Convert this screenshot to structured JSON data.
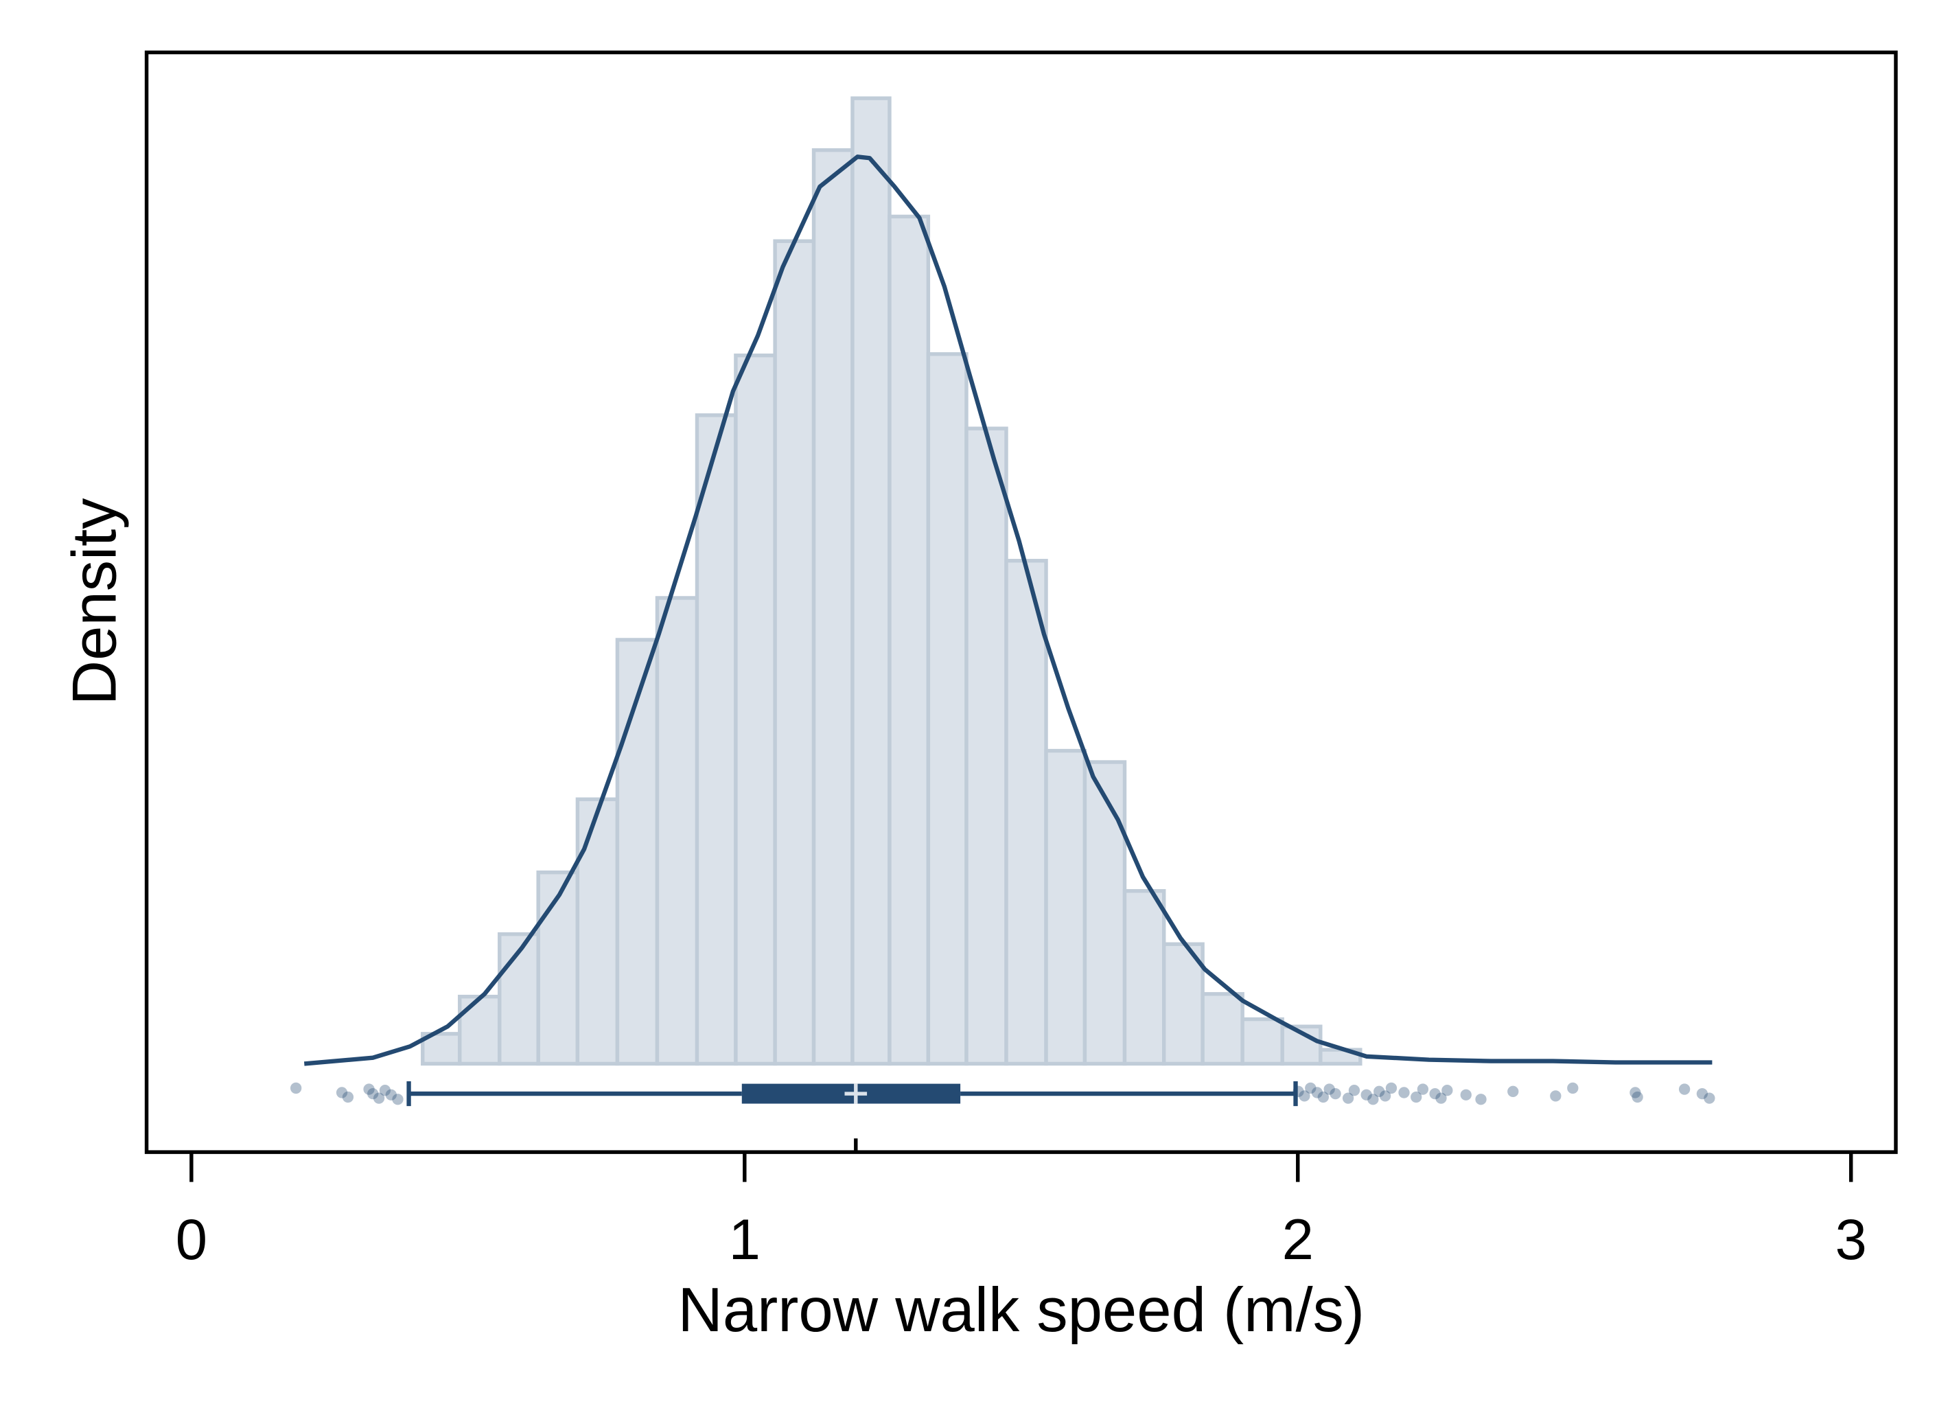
{
  "chart_data": {
    "type": "histogram",
    "x_label": "Narrow walk speed (m/s)",
    "y_label": "Density",
    "xlim": [
      -0.081,
      3.081
    ],
    "ylim": [
      -0.133,
      1.522
    ],
    "xticks": [
      0,
      1,
      2,
      3
    ],
    "bar_color": "#dbe2ea",
    "bar_edge_color": "#c0ccd8",
    "line_color": "#244a72",
    "bins": [
      0.418,
      0.485,
      0.557,
      0.627,
      0.698,
      0.77,
      0.842,
      0.914,
      0.984,
      1.055,
      1.125,
      1.195,
      1.262,
      1.332,
      1.401,
      1.473,
      1.545,
      1.615,
      1.687,
      1.758,
      1.828,
      1.9,
      1.972,
      2.041,
      2.113
    ],
    "values": [
      0.045,
      0.101,
      0.195,
      0.288,
      0.398,
      0.638,
      0.701,
      0.976,
      1.066,
      1.238,
      1.375,
      1.453,
      1.275,
      1.068,
      0.956,
      0.757,
      0.471,
      0.454,
      0.26,
      0.18,
      0.105,
      0.067,
      0.056,
      0.021
    ],
    "kde": {
      "x": [
        0.204,
        0.328,
        0.395,
        0.463,
        0.53,
        0.597,
        0.665,
        0.71,
        0.777,
        0.845,
        0.912,
        0.979,
        1.024,
        1.069,
        1.136,
        1.204,
        1.226,
        1.271,
        1.316,
        1.361,
        1.406,
        1.451,
        1.496,
        1.541,
        1.585,
        1.63,
        1.675,
        1.72,
        1.788,
        1.832,
        1.9,
        1.967,
        2.035,
        2.124,
        2.237,
        2.349,
        2.461,
        2.574,
        2.749
      ],
      "y": [
        0,
        0.009,
        0.026,
        0.056,
        0.105,
        0.174,
        0.254,
        0.323,
        0.479,
        0.647,
        0.825,
        1.012,
        1.096,
        1.199,
        1.32,
        1.365,
        1.363,
        1.32,
        1.273,
        1.17,
        1.039,
        0.909,
        0.787,
        0.647,
        0.535,
        0.432,
        0.367,
        0.281,
        0.189,
        0.142,
        0.095,
        0.064,
        0.034,
        0.011,
        0.006,
        0.004,
        0.004,
        0.002,
        0.002
      ]
    },
    "boxplot": {
      "whisker_low": 0.393,
      "q1": 0.995,
      "median": 1.201,
      "q3": 1.39,
      "whisker_high": 1.996,
      "outliers": [
        0.189,
        0.272,
        0.283,
        0.321,
        0.328,
        0.339,
        0.35,
        0.361,
        0.373,
        2.001,
        2.012,
        2.023,
        2.035,
        2.046,
        2.057,
        2.068,
        2.091,
        2.102,
        2.124,
        2.136,
        2.147,
        2.158,
        2.169,
        2.192,
        2.214,
        2.226,
        2.248,
        2.259,
        2.27,
        2.304,
        2.331,
        2.389,
        2.466,
        2.497,
        2.61,
        2.614,
        2.699,
        2.731,
        2.744
      ]
    }
  }
}
